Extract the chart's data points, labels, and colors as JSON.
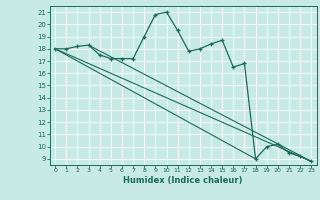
{
  "title": "",
  "xlabel": "Humidex (Indice chaleur)",
  "bg_color": "#c8eae4",
  "grid_color": "#ffffff",
  "line_color": "#1a6b5a",
  "xlim": [
    -0.5,
    23.5
  ],
  "ylim": [
    8.5,
    21.5
  ],
  "yticks": [
    9,
    10,
    11,
    12,
    13,
    14,
    15,
    16,
    17,
    18,
    19,
    20,
    21
  ],
  "xticks": [
    0,
    1,
    2,
    3,
    4,
    5,
    6,
    7,
    8,
    9,
    10,
    11,
    12,
    13,
    14,
    15,
    16,
    17,
    18,
    19,
    20,
    21,
    22,
    23
  ],
  "series1_x": [
    0,
    1,
    2,
    3,
    4,
    5,
    6,
    7,
    8,
    9,
    10,
    11,
    12,
    13,
    14,
    15,
    16,
    17,
    18,
    19,
    20,
    21,
    22,
    23
  ],
  "series1_y": [
    18.0,
    18.0,
    18.2,
    18.3,
    17.5,
    17.2,
    17.2,
    17.2,
    19.0,
    20.8,
    21.0,
    19.5,
    17.8,
    18.0,
    18.4,
    18.7,
    16.5,
    16.8,
    9.0,
    10.0,
    10.2,
    9.5,
    9.2,
    8.8
  ],
  "line1_x": [
    0,
    18
  ],
  "line1_y": [
    18.0,
    9.0
  ],
  "line2_x": [
    0,
    23
  ],
  "line2_y": [
    18.0,
    8.8
  ],
  "line3_x": [
    3,
    23
  ],
  "line3_y": [
    18.3,
    8.8
  ]
}
